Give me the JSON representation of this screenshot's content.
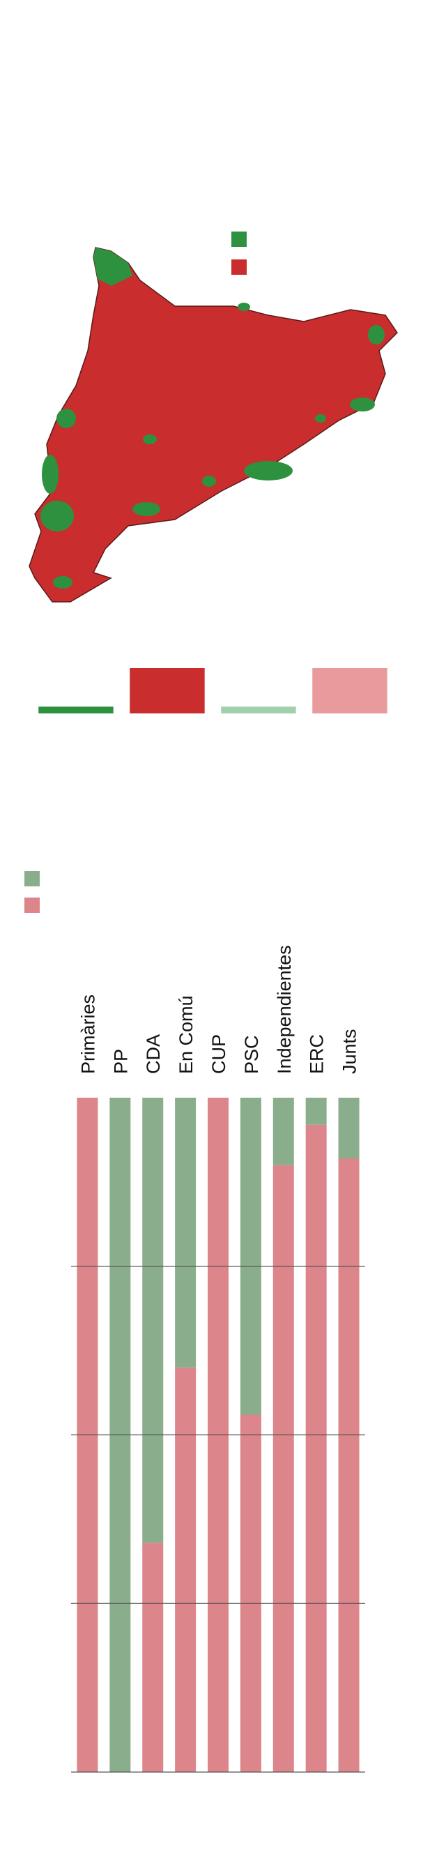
{
  "map": {
    "legend_colors": [
      "#2e9140",
      "#c92d2d"
    ]
  },
  "chart_data": [
    {
      "type": "bar",
      "categories": [
        null,
        null,
        null,
        null
      ],
      "values": [
        15,
        100,
        15,
        100
      ],
      "colors": [
        "#2e9140",
        "#c92d2d",
        "#a2d0ab",
        "#e89a9c"
      ],
      "ylim": [
        0,
        100
      ]
    },
    {
      "type": "stacked_bar",
      "categories": [
        "Primàries",
        "PP",
        "CDA",
        "En Comú",
        "CUP",
        "PSC",
        "Independientes",
        "ERC",
        "Junts"
      ],
      "series": [
        {
          "color": "#dc858a",
          "values": [
            100,
            0,
            34,
            60,
            100,
            53,
            90,
            96,
            91
          ]
        },
        {
          "color": "#8aae8c",
          "values": [
            0,
            100,
            66,
            40,
            0,
            47,
            10,
            4,
            9
          ]
        }
      ],
      "ylim": [
        0,
        100
      ],
      "yticks": [
        0,
        25,
        50,
        75
      ],
      "grid": true
    }
  ]
}
